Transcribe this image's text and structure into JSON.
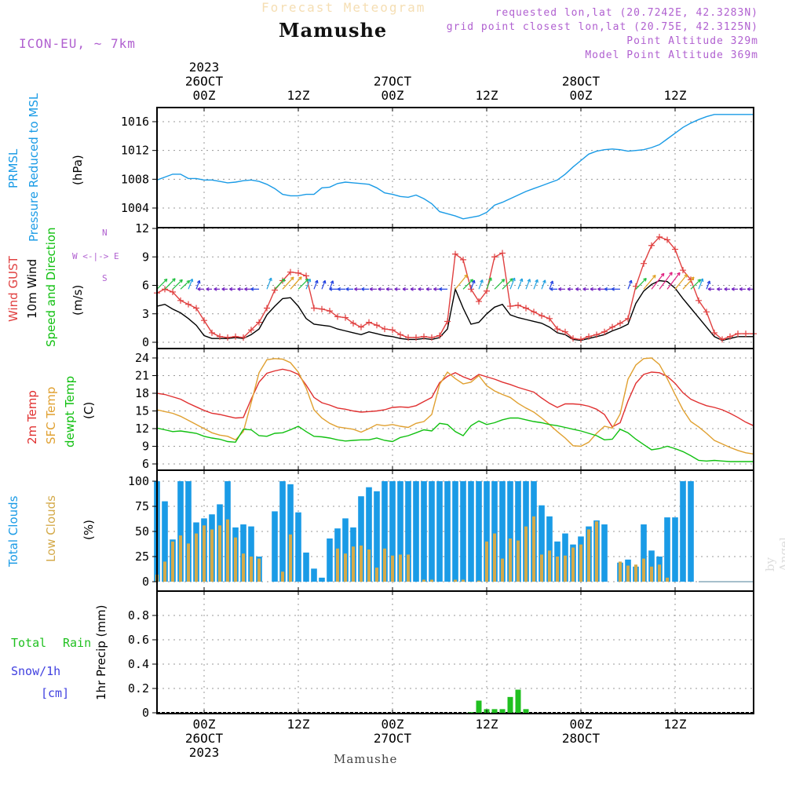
{
  "header": {
    "subtitle": "Forecast Meteogram",
    "title": "Mamushe",
    "model": "ICON-EU, ~ 7km",
    "requested": "requested lon,lat (20.7242E, 42.3283N)",
    "gridpoint": "grid point closest lon,lat (20.75E, 42.3125N)",
    "point_alt": "Point Altitude 329m",
    "model_alt": "Model Point Altitude 369m",
    "watermark": "by Angel",
    "footer": "Mamushe"
  },
  "time_axis": {
    "top_labels": [
      {
        "h": 6,
        "lines": [
          "2023",
          "26OCT",
          "00Z"
        ]
      },
      {
        "h": 18,
        "lines": [
          "12Z"
        ]
      },
      {
        "h": 30,
        "lines": [
          "27OCT",
          "00Z"
        ]
      },
      {
        "h": 42,
        "lines": [
          "12Z"
        ]
      },
      {
        "h": 54,
        "lines": [
          "28OCT",
          "00Z"
        ]
      },
      {
        "h": 66,
        "lines": [
          "12Z"
        ]
      }
    ],
    "bottom_labels": [
      {
        "h": 6,
        "lines": [
          "00Z",
          "26OCT",
          "2023"
        ]
      },
      {
        "h": 18,
        "lines": [
          "12Z"
        ]
      },
      {
        "h": 30,
        "lines": [
          "00Z",
          "27OCT"
        ]
      },
      {
        "h": 42,
        "lines": [
          "12Z"
        ]
      },
      {
        "h": 54,
        "lines": [
          "00Z",
          "28OCT"
        ]
      },
      {
        "h": 66,
        "lines": [
          "12Z"
        ]
      }
    ],
    "x_range_hours": [
      0,
      76
    ]
  },
  "panel_labels": {
    "pressure": {
      "left1": "PRMSL",
      "left2": "Pressure Reduced to MSL",
      "unit": "(hPa)"
    },
    "wind": {
      "left1": "Wind GUST",
      "left2": "10m Wind",
      "left3": "Speed and Direction",
      "unit": "(m/s)",
      "compass_ns": "N",
      "compass_ew": "W <-|-> E",
      "compass_s": "S"
    },
    "temp": {
      "left1": "2m Temp",
      "left2": "SFC Temp",
      "left3": "dewpt Temp",
      "unit": "(C)"
    },
    "cloud": {
      "left1": "Total Clouds",
      "left2": "Low Clouds",
      "unit": "(%)"
    },
    "precip": {
      "left1": "Total",
      "left1b": "Rain",
      "left2": "Snow/1h",
      "left3": "[cm]",
      "unit": "1hr Precip (mm)"
    }
  },
  "colors": {
    "pressure": "#1a9be6",
    "gust": "#e04040",
    "wind": "#000000",
    "temp2m": "#e03030",
    "sfctemp": "#e0a030",
    "dewpt": "#10c010",
    "total_cloud": "#1a9be6",
    "low_cloud": "#d4aa4a",
    "rain": "#20c020",
    "snow": "#4040e0",
    "grid": "#999999"
  },
  "chart_data": [
    {
      "type": "line",
      "name": "pressure",
      "ylim": [
        1002,
        1017
      ],
      "yticks": [
        1004,
        1008,
        1012,
        1016
      ],
      "x": [
        0,
        1,
        2,
        3,
        4,
        5,
        6,
        7,
        8,
        9,
        10,
        11,
        12,
        13,
        14,
        15,
        16,
        17,
        18,
        19,
        20,
        21,
        22,
        23,
        24,
        25,
        26,
        27,
        28,
        29,
        30,
        31,
        32,
        33,
        34,
        35,
        36,
        37,
        38,
        39,
        40,
        41,
        42,
        43,
        44,
        45,
        46,
        47,
        48,
        49,
        50,
        51,
        52,
        53,
        54,
        55,
        56,
        57,
        58,
        59,
        60,
        61,
        62,
        63,
        64,
        65,
        66,
        67,
        68,
        69,
        70,
        71,
        72,
        73,
        74,
        75,
        76
      ],
      "series": [
        {
          "values": [
            1007.9,
            1008.3,
            1008.7,
            1008.7,
            1008.1,
            1008.1,
            1007.9,
            1007.9,
            1007.7,
            1007.5,
            1007.6,
            1007.8,
            1007.9,
            1007.7,
            1007.3,
            1006.7,
            1005.9,
            1005.7,
            1005.7,
            1005.9,
            1005.9,
            1006.8,
            1006.9,
            1007.4,
            1007.6,
            1007.5,
            1007.4,
            1007.3,
            1006.8,
            1006.1,
            1005.9,
            1005.6,
            1005.5,
            1005.8,
            1005.3,
            1004.6,
            1003.5,
            1003.2,
            1002.9,
            1002.5,
            1002.7,
            1002.9,
            1003.4,
            1004.4,
            1004.8,
            1005.3,
            1005.8,
            1006.3,
            1006.7,
            1007.1,
            1007.5,
            1007.9,
            1008.7,
            1009.7,
            1010.6,
            1011.5,
            1011.9,
            1012.1,
            1012.2,
            1012.1,
            1011.9,
            1012.0,
            1012.1,
            1012.4,
            1012.8,
            1013.6,
            1014.4,
            1015.2,
            1015.8,
            1016.3,
            1016.7,
            1017.0,
            1017.0,
            1017.0,
            1017.0,
            1017.0,
            1017.0
          ]
        }
      ]
    },
    {
      "type": "line",
      "name": "wind",
      "ylim": [
        -0.5,
        12
      ],
      "yticks": [
        0,
        3,
        6,
        9,
        12
      ],
      "x": [
        0,
        1,
        2,
        3,
        4,
        5,
        6,
        7,
        8,
        9,
        10,
        11,
        12,
        13,
        14,
        15,
        16,
        17,
        18,
        19,
        20,
        21,
        22,
        23,
        24,
        25,
        26,
        27,
        28,
        29,
        30,
        31,
        32,
        33,
        34,
        35,
        36,
        37,
        38,
        39,
        40,
        41,
        42,
        43,
        44,
        45,
        46,
        47,
        48,
        49,
        50,
        51,
        52,
        53,
        54,
        55,
        56,
        57,
        58,
        59,
        60,
        61,
        62,
        63,
        64,
        65,
        66,
        67,
        68,
        69,
        70,
        71,
        72,
        73,
        74,
        75,
        76
      ],
      "series": [
        {
          "name": "gust",
          "values": [
            5.2,
            5.6,
            5.3,
            4.4,
            4.0,
            3.6,
            2.3,
            1.0,
            0.6,
            0.5,
            0.6,
            0.5,
            1.3,
            2.1,
            3.6,
            5.5,
            6.5,
            7.4,
            7.3,
            7.0,
            3.6,
            3.5,
            3.3,
            2.7,
            2.6,
            2.0,
            1.6,
            2.1,
            1.8,
            1.4,
            1.3,
            0.8,
            0.5,
            0.5,
            0.6,
            0.5,
            0.7,
            2.2,
            9.3,
            8.7,
            5.6,
            4.3,
            5.4,
            9.0,
            9.4,
            3.8,
            3.9,
            3.6,
            3.2,
            2.8,
            2.5,
            1.4,
            1.1,
            0.4,
            0.3,
            0.6,
            0.8,
            1.1,
            1.6,
            2.0,
            2.5,
            5.9,
            8.3,
            10.2,
            11.1,
            10.8,
            9.8,
            7.6,
            6.6,
            4.4,
            3.2,
            1.0,
            0.3,
            0.6,
            0.9,
            0.9,
            0.9
          ]
        },
        {
          "name": "wind10m",
          "values": [
            3.8,
            4.0,
            3.5,
            3.1,
            2.5,
            1.8,
            0.7,
            0.4,
            0.4,
            0.4,
            0.5,
            0.4,
            0.8,
            1.4,
            2.9,
            3.8,
            4.6,
            4.7,
            3.8,
            2.5,
            1.9,
            1.8,
            1.7,
            1.4,
            1.2,
            1.0,
            0.8,
            1.1,
            0.9,
            0.7,
            0.6,
            0.4,
            0.3,
            0.3,
            0.4,
            0.3,
            0.5,
            1.4,
            5.6,
            3.6,
            1.9,
            2.1,
            3.0,
            3.7,
            4.0,
            2.9,
            2.6,
            2.4,
            2.2,
            2.0,
            1.6,
            1.0,
            0.8,
            0.3,
            0.2,
            0.4,
            0.6,
            0.8,
            1.2,
            1.5,
            1.9,
            4.1,
            5.4,
            6.1,
            6.5,
            6.4,
            5.7,
            4.6,
            3.6,
            2.6,
            1.6,
            0.6,
            0.2,
            0.4,
            0.6,
            0.6,
            0.6
          ]
        }
      ]
    },
    {
      "type": "line",
      "name": "temperature",
      "ylim": [
        5.5,
        25
      ],
      "yticks": [
        6,
        9,
        12,
        15,
        18,
        21,
        24
      ],
      "x": [
        0,
        1,
        2,
        3,
        4,
        5,
        6,
        7,
        8,
        9,
        10,
        11,
        12,
        13,
        14,
        15,
        16,
        17,
        18,
        19,
        20,
        21,
        22,
        23,
        24,
        25,
        26,
        27,
        28,
        29,
        30,
        31,
        32,
        33,
        34,
        35,
        36,
        37,
        38,
        39,
        40,
        41,
        42,
        43,
        44,
        45,
        46,
        47,
        48,
        49,
        50,
        51,
        52,
        53,
        54,
        55,
        56,
        57,
        58,
        59,
        60,
        61,
        62,
        63,
        64,
        65,
        66,
        67,
        68,
        69,
        70,
        71,
        72,
        73,
        74,
        75,
        76
      ],
      "series": [
        {
          "name": "2m Temp",
          "values": [
            18.0,
            17.8,
            17.4,
            17.0,
            16.3,
            15.7,
            15.1,
            14.6,
            14.4,
            14.1,
            13.8,
            13.9,
            17.0,
            19.9,
            21.4,
            21.8,
            22.1,
            21.8,
            21.2,
            19.4,
            17.3,
            16.4,
            16.0,
            15.5,
            15.3,
            15.0,
            14.8,
            14.9,
            15.0,
            15.2,
            15.6,
            15.7,
            15.6,
            15.9,
            16.6,
            17.3,
            19.8,
            20.9,
            21.5,
            20.8,
            20.3,
            21.2,
            20.8,
            20.4,
            19.9,
            19.5,
            19.0,
            18.6,
            18.2,
            17.2,
            16.3,
            15.6,
            16.2,
            16.2,
            16.1,
            15.8,
            15.3,
            14.4,
            12.3,
            13.0,
            16.7,
            19.7,
            21.2,
            21.6,
            21.5,
            20.9,
            19.7,
            18.1,
            17.0,
            16.4,
            15.9,
            15.6,
            15.2,
            14.6,
            13.9,
            13.1,
            12.5
          ]
        },
        {
          "name": "SFC Temp",
          "values": [
            15.2,
            14.9,
            14.6,
            14.1,
            13.4,
            12.7,
            12.0,
            11.3,
            10.9,
            10.7,
            10.1,
            11.5,
            16.4,
            21.5,
            23.7,
            23.9,
            23.8,
            23.2,
            21.6,
            18.9,
            15.2,
            13.8,
            12.9,
            12.3,
            12.1,
            11.9,
            11.4,
            12.0,
            12.7,
            12.5,
            12.7,
            12.4,
            12.2,
            12.9,
            13.2,
            14.4,
            19.5,
            21.6,
            20.5,
            19.6,
            19.9,
            21.0,
            19.3,
            18.4,
            17.8,
            17.3,
            16.3,
            15.5,
            14.8,
            13.8,
            12.7,
            11.5,
            10.4,
            9.1,
            9.0,
            9.7,
            11.2,
            12.4,
            12.1,
            14.5,
            20.4,
            22.8,
            23.9,
            24.0,
            22.9,
            20.5,
            17.8,
            15.2,
            13.2,
            12.3,
            11.2,
            10.0,
            9.4,
            8.8,
            8.3,
            7.9,
            7.7
          ]
        },
        {
          "name": "dewpt Temp",
          "values": [
            12.1,
            11.8,
            11.5,
            11.6,
            11.4,
            11.2,
            10.7,
            10.4,
            10.2,
            9.8,
            9.7,
            11.9,
            11.8,
            10.8,
            10.7,
            11.2,
            11.3,
            11.8,
            12.4,
            11.5,
            10.7,
            10.6,
            10.4,
            10.1,
            9.9,
            10.0,
            10.1,
            10.1,
            10.4,
            10.0,
            9.8,
            10.5,
            10.8,
            11.3,
            11.8,
            11.6,
            12.9,
            12.7,
            11.5,
            10.8,
            12.5,
            13.3,
            12.7,
            13.0,
            13.5,
            13.8,
            13.8,
            13.5,
            13.2,
            13.0,
            12.7,
            12.5,
            12.2,
            11.9,
            11.6,
            11.2,
            10.8,
            10.1,
            10.2,
            11.9,
            11.3,
            10.2,
            9.3,
            8.4,
            8.6,
            9.0,
            8.6,
            8.1,
            7.4,
            6.6,
            6.5,
            6.6,
            6.5,
            6.4,
            6.4,
            6.4,
            6.4
          ]
        }
      ]
    },
    {
      "type": "bar",
      "name": "clouds",
      "ylim": [
        0,
        100
      ],
      "yticks": [
        0,
        25,
        50,
        75,
        100
      ],
      "x": [
        0,
        1,
        2,
        3,
        4,
        5,
        6,
        7,
        8,
        9,
        10,
        11,
        12,
        13,
        14,
        15,
        16,
        17,
        18,
        19,
        20,
        21,
        22,
        23,
        24,
        25,
        26,
        27,
        28,
        29,
        30,
        31,
        32,
        33,
        34,
        35,
        36,
        37,
        38,
        39,
        40,
        41,
        42,
        43,
        44,
        45,
        46,
        47,
        48,
        49,
        50,
        51,
        52,
        53,
        54,
        55,
        56,
        57,
        58,
        59,
        60,
        61,
        62,
        63,
        64,
        65,
        66,
        67,
        68,
        69,
        70,
        71,
        72,
        73,
        74,
        75,
        76
      ],
      "series": [
        {
          "name": "Total Clouds",
          "values": [
            100,
            80,
            42,
            100,
            100,
            59,
            63,
            67,
            77,
            100,
            54,
            57,
            55,
            25,
            0,
            70,
            100,
            97,
            69,
            29,
            13,
            4,
            43,
            53,
            63,
            54,
            85,
            94,
            90,
            100,
            100,
            100,
            100,
            100,
            100,
            100,
            100,
            100,
            100,
            100,
            100,
            100,
            100,
            100,
            100,
            100,
            100,
            100,
            100,
            76,
            65,
            40,
            48,
            37,
            45,
            55,
            61,
            57,
            0,
            19,
            22,
            15,
            57,
            31,
            25,
            64,
            64,
            100,
            100,
            0,
            0,
            0,
            0,
            0,
            0,
            0,
            0
          ]
        },
        {
          "name": "Low Clouds",
          "values": [
            7,
            20,
            40,
            46,
            38,
            48,
            56,
            52,
            56,
            62,
            44,
            28,
            25,
            23,
            0,
            0,
            10,
            47,
            0,
            0,
            0,
            0,
            0,
            33,
            28,
            35,
            36,
            32,
            14,
            33,
            26,
            27,
            27,
            0,
            2,
            2,
            0,
            0,
            2,
            2,
            0,
            1,
            40,
            48,
            23,
            43,
            41,
            55,
            65,
            27,
            31,
            25,
            26,
            34,
            37,
            52,
            60,
            0,
            0,
            20,
            16,
            17,
            23,
            15,
            17,
            4,
            0,
            0,
            0,
            0,
            0,
            0,
            0,
            0,
            0,
            0,
            0
          ]
        }
      ]
    },
    {
      "type": "bar",
      "name": "precip",
      "ylim": [
        0,
        1.0
      ],
      "yticks": [
        0,
        0.2,
        0.4,
        0.6,
        0.8
      ],
      "x": [
        40,
        41,
        42,
        43,
        44,
        45,
        46,
        47
      ],
      "series": [
        {
          "name": "Total Rain",
          "values": [
            0.005,
            0.1,
            0.03,
            0.03,
            0.03,
            0.13,
            0.19,
            0.03
          ]
        }
      ]
    }
  ]
}
